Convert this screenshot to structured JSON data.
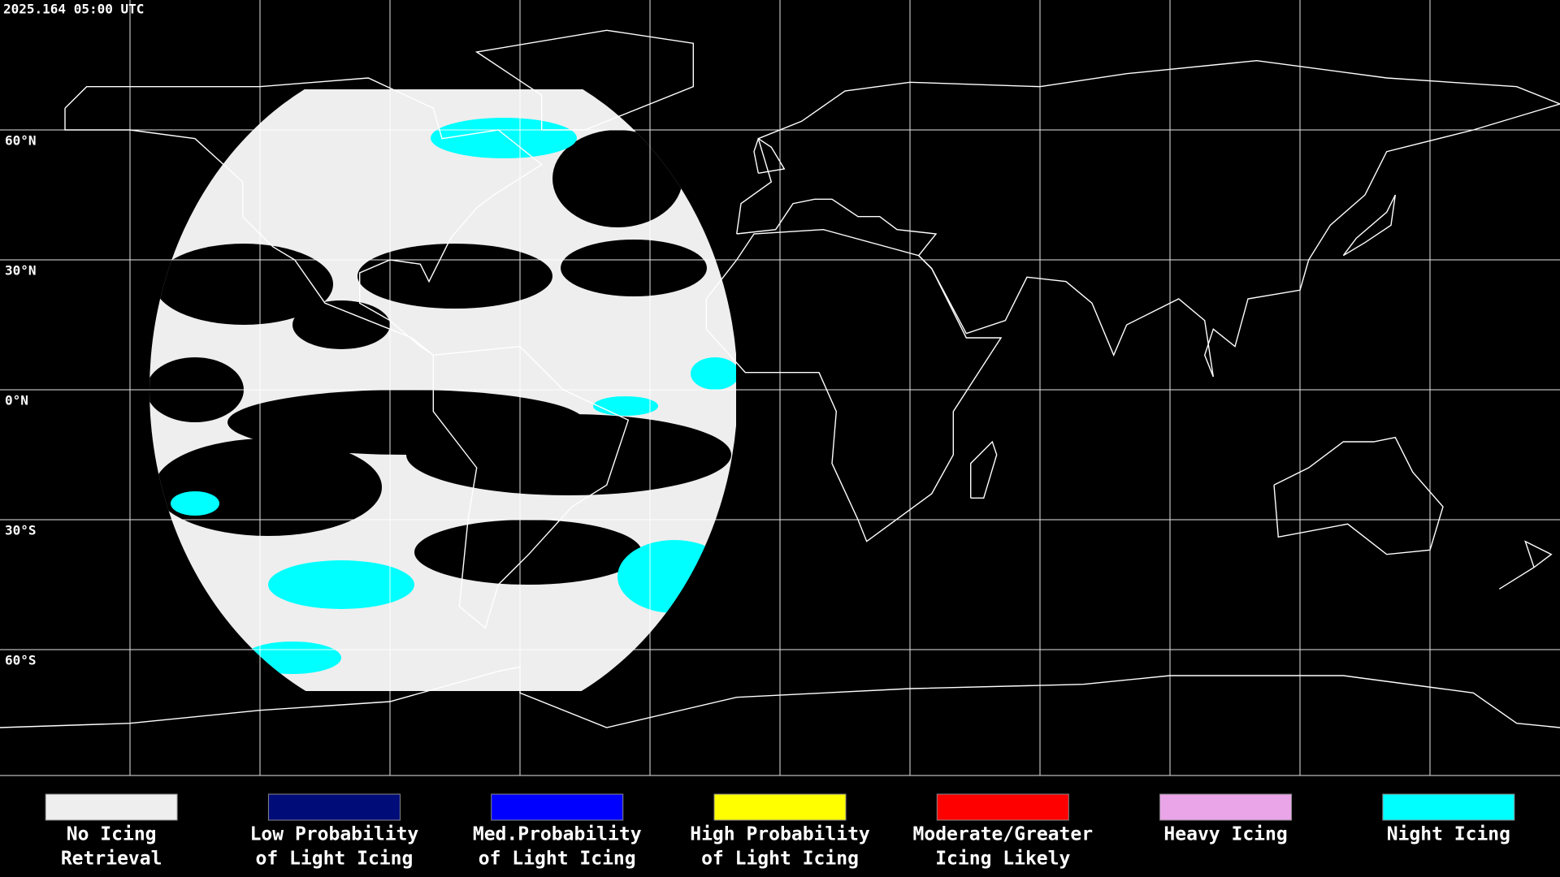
{
  "header": {
    "timestamp": "2025.164 05:00 UTC"
  },
  "grid": {
    "lat_labels": [
      "60°N",
      "30°N",
      "0°N",
      "30°S",
      "60°S"
    ]
  },
  "legend": [
    {
      "lines": [
        "No Icing",
        "Retrieval"
      ],
      "color": "#eeeeee"
    },
    {
      "lines": [
        "Low Probability",
        "of Light Icing"
      ],
      "color": "#000c78"
    },
    {
      "lines": [
        "Med.Probability",
        "of Light Icing"
      ],
      "color": "#0000ff"
    },
    {
      "lines": [
        "High Probability",
        "of Light Icing"
      ],
      "color": "#ffff00"
    },
    {
      "lines": [
        "Moderate/Greater",
        "Icing Likely"
      ],
      "color": "#ff0000"
    },
    {
      "lines": [
        "Heavy Icing"
      ],
      "color": "#eaa5e8"
    },
    {
      "lines": [
        "Night Icing"
      ],
      "color": "#00ffff"
    }
  ]
}
